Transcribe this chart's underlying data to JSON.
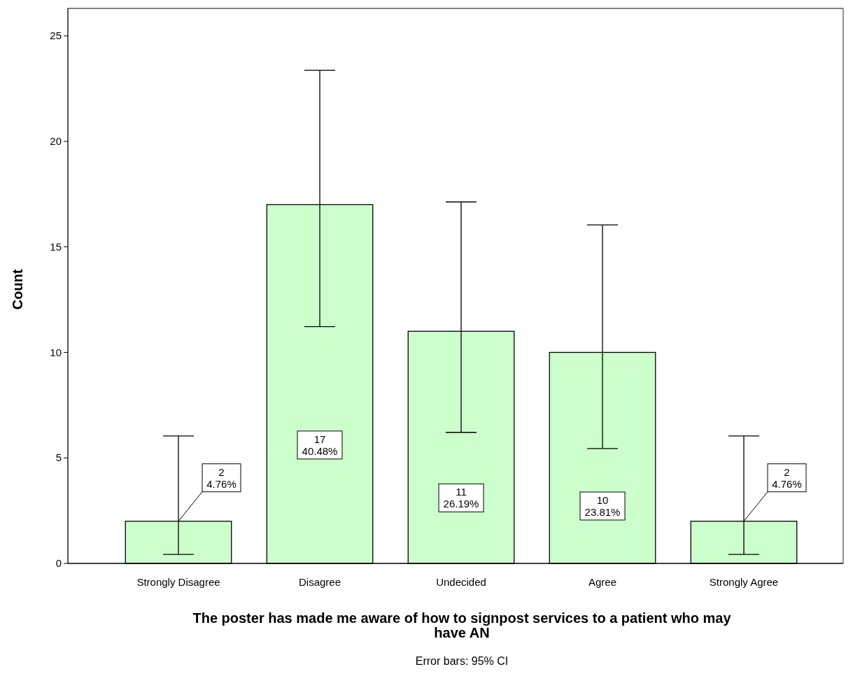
{
  "chart_data": {
    "type": "bar",
    "xlabel": "The poster has made me aware of how to signpost services to a patient who may have AN",
    "ylabel": "Count",
    "annotations": [
      "Error bars: 95% CI"
    ],
    "categories": [
      "Strongly Disagree",
      "Disagree",
      "Undecided",
      "Agree",
      "Strongly Agree"
    ],
    "values": [
      2,
      17,
      11,
      10,
      2
    ],
    "errors": [
      [
        0.43,
        6.04
      ],
      [
        11.22,
        23.37
      ],
      [
        6.21,
        17.13
      ],
      [
        5.44,
        16.04
      ],
      [
        0.43,
        6.04
      ]
    ],
    "value_labels": [
      "2\n4.76%",
      "17\n40.48%",
      "11\n26.19%",
      "10\n23.81%",
      "2\n4.76%"
    ],
    "color": "#ccffcc",
    "ylim": [
      0,
      26.3
    ],
    "yticks": [
      0,
      5,
      10,
      15,
      20,
      25
    ],
    "grid": false
  }
}
